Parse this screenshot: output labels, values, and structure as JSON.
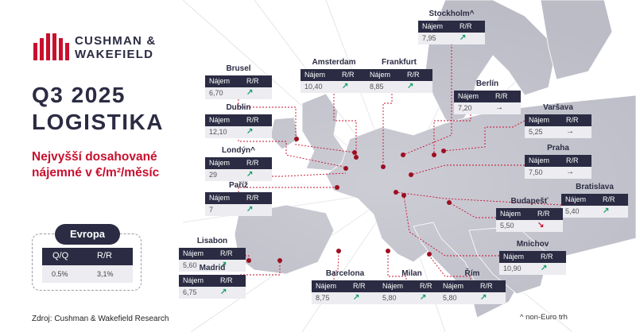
{
  "brand": {
    "line1": "CUSHMAN &",
    "line2": "WAKEFIELD",
    "accent": "#c8102e",
    "navy": "#2b2c43"
  },
  "title": {
    "quarter": "Q3 2025",
    "sector": "LOGISTIKA"
  },
  "subtitle": {
    "line1": "Nejvyšší dosahované",
    "line2": "nájemné v €/m²/měsíc"
  },
  "europa": {
    "title": "Evropa",
    "col1": "Q/Q",
    "col2": "R/R",
    "val1": "0.5%",
    "val2": "3,1%"
  },
  "headers": {
    "rent": "Nájem",
    "yoy": "R/R"
  },
  "trend_icons": {
    "up": "arrow-up-right-icon",
    "flat": "arrow-right-icon",
    "down": "arrow-down-right-icon"
  },
  "cities": [
    {
      "id": "stockholm",
      "name": "Stockholm^",
      "value": "7,95",
      "trend": "up"
    },
    {
      "id": "brusel",
      "name": "Brusel",
      "value": "6,70",
      "trend": "up"
    },
    {
      "id": "amsterdam",
      "name": "Amsterdam",
      "value": "10,40",
      "trend": "up"
    },
    {
      "id": "frankfurt",
      "name": "Frankfurt",
      "value": "8,85",
      "trend": "up"
    },
    {
      "id": "berlin",
      "name": "Berlín",
      "value": "7,20",
      "trend": "flat"
    },
    {
      "id": "dublin",
      "name": "Dublin",
      "value": "12,10",
      "trend": "up"
    },
    {
      "id": "varsava",
      "name": "Varšava",
      "value": "5,25",
      "trend": "flat"
    },
    {
      "id": "londyn",
      "name": "Londýn^",
      "value": "29",
      "trend": "up"
    },
    {
      "id": "praha",
      "name": "Praha",
      "value": "7,50",
      "trend": "flat"
    },
    {
      "id": "pariz",
      "name": "Paříž",
      "value": "7",
      "trend": "up"
    },
    {
      "id": "bratislava",
      "name": "Bratislava",
      "value": "5,40",
      "trend": "up"
    },
    {
      "id": "budapest",
      "name": "Budapešť",
      "value": "5,50",
      "trend": "down"
    },
    {
      "id": "lisabon",
      "name": "Lisabon",
      "value": "5,60",
      "trend": "up"
    },
    {
      "id": "mnichov",
      "name": "Mnichov",
      "value": "10,90",
      "trend": "up"
    },
    {
      "id": "madrid",
      "name": "Madrid",
      "value": "6,75",
      "trend": "up"
    },
    {
      "id": "barcelona",
      "name": "Barcelona",
      "value": "8,75",
      "trend": "up"
    },
    {
      "id": "milan",
      "name": "Milan",
      "value": "5,80",
      "trend": "up"
    },
    {
      "id": "rim",
      "name": "Řím",
      "value": "5,80",
      "trend": "up"
    }
  ],
  "source": "Zdroj: Cushman & Wakefield Research",
  "footnote": "^ non-Euro trh"
}
